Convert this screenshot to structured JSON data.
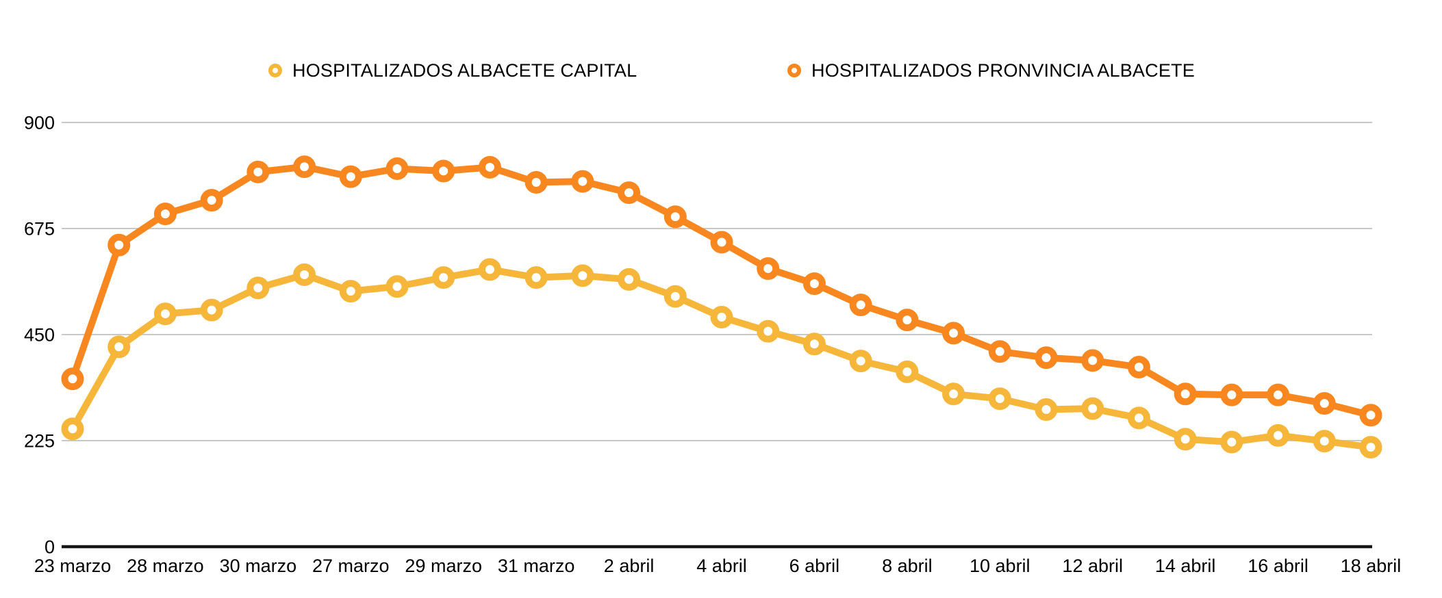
{
  "chart_data": {
    "type": "line",
    "title": "",
    "xlabel": "",
    "ylabel": "",
    "ylim": [
      0,
      900
    ],
    "y_ticks": [
      0,
      225,
      450,
      675,
      900
    ],
    "grid": "horizontal-only",
    "grid_color": "#C8C8C8",
    "axis_color": "#161616",
    "background": "#FFFFFF",
    "legend_position": "top",
    "x_tick_labels": [
      "23 marzo",
      "28 marzo",
      "30 marzo",
      "27 marzo",
      "29 marzo",
      "31 marzo",
      "2 abril",
      "4 abril",
      "6 abril",
      "8 abril",
      "10 abril",
      "12 abril",
      "14 abril",
      "16 abril",
      "18 abril"
    ],
    "x_labels_every_n_points": 2,
    "series": [
      {
        "name": "HOSPITALIZADOS ALBACETE CAPITAL",
        "color": "#F5B63A",
        "marker": "ring",
        "values": [
          250,
          424,
          494,
          502,
          549,
          577,
          542,
          552,
          571,
          588,
          571,
          575,
          567,
          531,
          487,
          457,
          430,
          394,
          371,
          324,
          314,
          291,
          293,
          273,
          228,
          222,
          236,
          224,
          211
        ]
      },
      {
        "name": "HOSPITALIZADOS PRONVINCIA ALBACETE",
        "color": "#F8871F",
        "marker": "ring",
        "values": [
          356,
          640,
          706,
          735,
          795,
          806,
          785,
          802,
          797,
          805,
          773,
          775,
          751,
          700,
          646,
          590,
          558,
          513,
          481,
          453,
          414,
          401,
          395,
          381,
          324,
          322,
          322,
          304,
          279
        ]
      }
    ]
  }
}
